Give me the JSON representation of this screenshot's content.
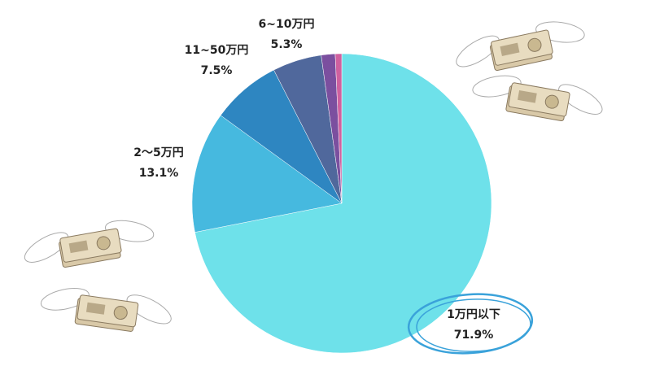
{
  "chart_data": {
    "type": "pie",
    "categories": [
      "1万円以下",
      "2～5万円",
      "11~50万円",
      "6~10万円",
      null,
      null
    ],
    "values": [
      71.9,
      13.1,
      7.5,
      5.3,
      1.5,
      0.7
    ],
    "value_labels": [
      "71.9%",
      "13.1%",
      "7.5%",
      "5.3%",
      null,
      null
    ],
    "colors": [
      "#6ee1ea",
      "#46b9df",
      "#2e86c1",
      "#50689c",
      "#7b4f9f",
      "#d0609f"
    ]
  }
}
